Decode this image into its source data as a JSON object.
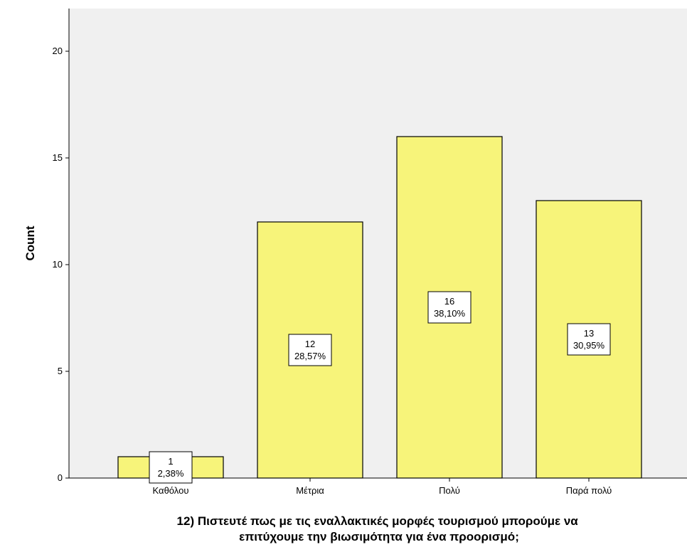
{
  "chart_data": {
    "type": "bar",
    "categories": [
      "Καθόλου",
      "Μέτρια",
      "Πολύ",
      "Παρά πολύ"
    ],
    "values": [
      1,
      12,
      16,
      13
    ],
    "percent_labels": [
      "2,38%",
      "28,57%",
      "38,10%",
      "30,95%"
    ],
    "ylabel": "Count",
    "xlabel": "12)  Πιστευτέ  πως με τις εναλλακτικές μορφές τουρισμού μπορούμε να επιτύχουμε την βιωσιμότητα για ένα προορισμό;",
    "xlabel_lines": [
      "12)  Πιστευτέ  πως με τις εναλλακτικές μορφές τουρισμού μπορούμε να",
      "επιτύχουμε την βιωσιμότητα για ένα προορισμό;"
    ],
    "ylim": [
      0,
      22
    ],
    "yticks": [
      0,
      5,
      10,
      15,
      20
    ],
    "grid": false,
    "colors": {
      "plot_bg": "#f0f0f0",
      "bar_fill": "#f7f47a",
      "bar_stroke": "#000000",
      "label_bg": "#ffffff"
    }
  }
}
